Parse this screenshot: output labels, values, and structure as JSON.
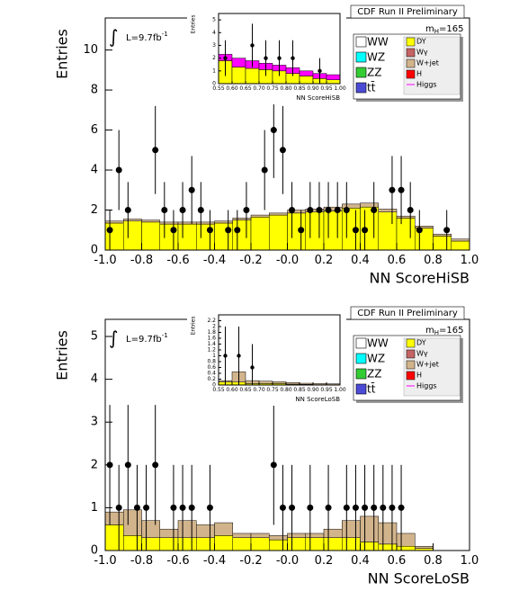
{
  "chart_data": [
    {
      "type": "histogram",
      "title": "CDF Run II Preliminary",
      "x_label": "NN ScoreHiSB",
      "y_label": "Entries",
      "lumi": {
        "text": "L=9.7fb",
        "superscript": "-1"
      },
      "mass": {
        "symbol": "m",
        "subscript": "H",
        "text": "=165"
      },
      "xlim": [
        -1,
        1
      ],
      "xticks": [
        {
          "value": -1,
          "label": "-1.0"
        },
        {
          "value": -0.8,
          "label": "-0.8"
        },
        {
          "value": -0.6,
          "label": "-0.6"
        },
        {
          "value": -0.4,
          "label": "-0.4"
        },
        {
          "value": -0.2,
          "label": "-0.2"
        },
        {
          "value": 0,
          "label": "-0.0"
        },
        {
          "value": 0.2,
          "label": "0.2"
        },
        {
          "value": 0.4,
          "label": "0.4"
        },
        {
          "value": 0.6,
          "label": "0.6"
        },
        {
          "value": 0.8,
          "label": "0.8"
        },
        {
          "value": 1,
          "label": "1.0"
        }
      ],
      "ylim": [
        0,
        11.6
      ],
      "yticks": [
        0,
        2,
        4,
        6,
        8,
        10
      ],
      "bins": [
        -1,
        -0.9,
        -0.8,
        -0.7,
        -0.6,
        -0.5,
        -0.4,
        -0.3,
        -0.2,
        -0.1,
        0,
        0.1,
        0.2,
        0.3,
        0.4,
        0.5,
        0.6,
        0.7,
        0.8,
        0.9,
        1
      ],
      "series": [
        {
          "name": "DY",
          "color": "#ffff00",
          "values": [
            1.35,
            1.45,
            1.4,
            1.3,
            1.3,
            1.3,
            1.35,
            1.5,
            1.65,
            1.75,
            1.85,
            1.9,
            1.95,
            2.1,
            2.15,
            1.9,
            1.6,
            1.1,
            0.7,
            0.45
          ]
        },
        {
          "name": "W+jet",
          "color": "#d2b48c",
          "values": [
            0.1,
            0.1,
            0.1,
            0.1,
            0.1,
            0.1,
            0.1,
            0.1,
            0.1,
            0.1,
            0.15,
            0.15,
            0.2,
            0.2,
            0.2,
            0.15,
            0.1,
            0.1,
            0.1,
            0.1
          ]
        }
      ],
      "points": {
        "x": [
          -0.975,
          -0.925,
          -0.875,
          -0.725,
          -0.675,
          -0.625,
          -0.575,
          -0.525,
          -0.475,
          -0.425,
          -0.325,
          -0.275,
          -0.225,
          -0.125,
          -0.075,
          -0.025,
          0.025,
          0.075,
          0.125,
          0.175,
          0.225,
          0.275,
          0.325,
          0.375,
          0.425,
          0.475,
          0.575,
          0.625,
          0.675,
          0.725,
          0.875
        ],
        "values": [
          1,
          4,
          2,
          5,
          2,
          1,
          2,
          3,
          2,
          1,
          1,
          1,
          2,
          4,
          6,
          5,
          2,
          1,
          2,
          2,
          2,
          2,
          2,
          1,
          1,
          2,
          3,
          3,
          2,
          1,
          1
        ],
        "errors": [
          1,
          2,
          1.4,
          2.2,
          1.4,
          1,
          1.4,
          1.7,
          1.4,
          1,
          1,
          1,
          1.4,
          2,
          2.4,
          2.2,
          1.4,
          1,
          1.4,
          1.4,
          1.4,
          1.4,
          1.4,
          1,
          1,
          1.4,
          1.7,
          1.7,
          1.4,
          1,
          1
        ]
      },
      "legend": [
        {
          "name": "WW",
          "color": "#ffffff"
        },
        {
          "name": "WZ",
          "color": "#00ffff"
        },
        {
          "name": "ZZ",
          "color": "#33cc33"
        },
        {
          "name": "tt̄",
          "color": "#4b4bd6"
        },
        {
          "name": "DY",
          "color": "#ffff00"
        },
        {
          "name": "Wγ",
          "color": "#c46464"
        },
        {
          "name": "W+jet",
          "color": "#d2b48c"
        },
        {
          "name": "H",
          "color": "#ff0000"
        },
        {
          "name": "Higgs",
          "color": "#ff00ff"
        }
      ],
      "inset": {
        "type": "histogram",
        "x_label": "NN ScoreHiSB",
        "y_label": "Entries",
        "xlim": [
          0.55,
          1
        ],
        "xticks": [
          {
            "value": 0.55,
            "label": "0.55"
          },
          {
            "value": 0.6,
            "label": "0.60"
          },
          {
            "value": 0.65,
            "label": "0.65"
          },
          {
            "value": 0.7,
            "label": "0.70"
          },
          {
            "value": 0.75,
            "label": "0.75"
          },
          {
            "value": 0.8,
            "label": "0.80"
          },
          {
            "value": 0.85,
            "label": "0.85"
          },
          {
            "value": 0.9,
            "label": "0.90"
          },
          {
            "value": 0.95,
            "label": "0.95"
          },
          {
            "value": 1,
            "label": "1.00"
          }
        ],
        "ylim": [
          0,
          5.5
        ],
        "yticks": [
          0,
          1,
          2,
          3,
          4,
          5
        ],
        "bins": [
          0.55,
          0.6,
          0.65,
          0.7,
          0.75,
          0.8,
          0.85,
          0.9,
          0.95,
          1
        ],
        "series": [
          {
            "name": "DY",
            "color": "#ffff00",
            "values": [
              1.8,
              1.3,
              1.2,
              1.1,
              1.0,
              0.8,
              0.6,
              0.4,
              0.3
            ]
          },
          {
            "name": "Higgs",
            "color": "#ff00ff",
            "values": [
              0.5,
              0.7,
              0.6,
              0.5,
              0.45,
              0.45,
              0.4,
              0.4,
              0.4
            ]
          }
        ],
        "points": {
          "x": [
            0.575,
            0.675,
            0.725,
            0.775,
            0.825,
            0.925
          ],
          "values": [
            2,
            3,
            2,
            2,
            2,
            1
          ],
          "errors": [
            1.4,
            1.7,
            1.4,
            1.4,
            1.4,
            1
          ]
        }
      }
    },
    {
      "type": "histogram",
      "title": "CDF Run II Preliminary",
      "x_label": "NN ScoreLoSB",
      "y_label": "Entries",
      "lumi": {
        "text": "L=9.7fb",
        "superscript": "-1"
      },
      "mass": {
        "symbol": "m",
        "subscript": "H",
        "text": "=165"
      },
      "xlim": [
        -1,
        1
      ],
      "xticks": [
        {
          "value": -1,
          "label": "-1.0"
        },
        {
          "value": -0.8,
          "label": "-0.8"
        },
        {
          "value": -0.6,
          "label": "-0.6"
        },
        {
          "value": -0.4,
          "label": "-0.4"
        },
        {
          "value": -0.2,
          "label": "-0.2"
        },
        {
          "value": 0,
          "label": "-0.0"
        },
        {
          "value": 0.2,
          "label": "0.2"
        },
        {
          "value": 0.4,
          "label": "0.4"
        },
        {
          "value": 0.6,
          "label": "0.6"
        },
        {
          "value": 0.8,
          "label": "0.8"
        },
        {
          "value": 1,
          "label": "1.0"
        }
      ],
      "ylim": [
        0,
        5.4
      ],
      "yticks": [
        0,
        1,
        2,
        3,
        4,
        5
      ],
      "bins": [
        -1,
        -0.9,
        -0.8,
        -0.7,
        -0.6,
        -0.5,
        -0.4,
        -0.3,
        -0.2,
        -0.1,
        0,
        0.1,
        0.2,
        0.3,
        0.4,
        0.5,
        0.6,
        0.7,
        0.8,
        0.9,
        1
      ],
      "series": [
        {
          "name": "DY",
          "color": "#ffff00",
          "values": [
            0.6,
            0.35,
            0.3,
            0.3,
            0.3,
            0.3,
            0.35,
            0.3,
            0.3,
            0.25,
            0.3,
            0.3,
            0.3,
            0.3,
            0.2,
            0.15,
            0.1,
            0.05,
            0,
            0
          ]
        },
        {
          "name": "W+jet",
          "color": "#d2b48c",
          "values": [
            0.3,
            0.6,
            0.4,
            0.2,
            0.4,
            0.3,
            0.3,
            0.1,
            0.1,
            0.1,
            0.1,
            0.1,
            0.2,
            0.4,
            0.6,
            0.5,
            0.3,
            0.05,
            0,
            0
          ]
        }
      ],
      "points": {
        "x": [
          -0.975,
          -0.925,
          -0.875,
          -0.825,
          -0.775,
          -0.725,
          -0.625,
          -0.575,
          -0.525,
          -0.425,
          -0.075,
          -0.025,
          0.025,
          0.125,
          0.225,
          0.325,
          0.375,
          0.425,
          0.475,
          0.525,
          0.575,
          0.625
        ],
        "values": [
          2,
          1,
          2,
          1,
          1,
          2,
          1,
          1,
          1,
          1,
          2,
          1,
          1,
          1,
          1,
          1,
          1,
          1,
          1,
          1,
          1,
          1
        ],
        "errors": [
          1.4,
          1,
          1.4,
          1,
          1,
          1.4,
          1,
          1,
          1,
          1,
          1.4,
          1,
          1,
          1,
          1,
          1,
          1,
          1,
          1,
          1,
          1,
          1
        ]
      },
      "legend": [
        {
          "name": "WW",
          "color": "#ffffff"
        },
        {
          "name": "WZ",
          "color": "#00ffff"
        },
        {
          "name": "ZZ",
          "color": "#33cc33"
        },
        {
          "name": "tt̄",
          "color": "#4b4bd6"
        },
        {
          "name": "DY",
          "color": "#ffff00"
        },
        {
          "name": "Wγ",
          "color": "#c46464"
        },
        {
          "name": "W+jet",
          "color": "#d2b48c"
        },
        {
          "name": "H",
          "color": "#ff0000"
        },
        {
          "name": "Higgs",
          "color": "#ff00ff"
        }
      ],
      "inset": {
        "type": "histogram",
        "x_label": "NN ScoreLoSB",
        "y_label": "Entries",
        "xlim": [
          0.55,
          1
        ],
        "xticks": [
          {
            "value": 0.55,
            "label": "0.55"
          },
          {
            "value": 0.6,
            "label": "0.60"
          },
          {
            "value": 0.65,
            "label": "0.65"
          },
          {
            "value": 0.7,
            "label": "0.70"
          },
          {
            "value": 0.75,
            "label": "0.75"
          },
          {
            "value": 0.8,
            "label": "0.80"
          },
          {
            "value": 0.85,
            "label": "0.85"
          },
          {
            "value": 0.9,
            "label": "0.90"
          },
          {
            "value": 0.95,
            "label": "0.95"
          },
          {
            "value": 1,
            "label": "1.00"
          }
        ],
        "ylim": [
          0,
          2.4
        ],
        "yticks": [
          0,
          0.2,
          0.4,
          0.6,
          0.8,
          1,
          1.2,
          1.4,
          1.6,
          1.8,
          2,
          2.2
        ],
        "bins": [
          0.55,
          0.6,
          0.65,
          0.7,
          0.75,
          0.8,
          0.85,
          0.9,
          0.95,
          1
        ],
        "series": [
          {
            "name": "DY",
            "color": "#ffff00",
            "values": [
              0.1,
              0.1,
              0.05,
              0.05,
              0.05,
              0.03,
              0.02,
              0.01,
              0.01
            ]
          },
          {
            "name": "W+jet",
            "color": "#d2b48c",
            "values": [
              0.05,
              0.35,
              0.1,
              0.08,
              0.06,
              0.05,
              0.04,
              0.04,
              0.03
            ]
          }
        ],
        "points": {
          "x": [
            0.575,
            0.625,
            0.675
          ],
          "values": [
            1,
            1,
            0.6
          ],
          "errors": [
            1,
            1,
            0.8
          ]
        }
      }
    }
  ]
}
